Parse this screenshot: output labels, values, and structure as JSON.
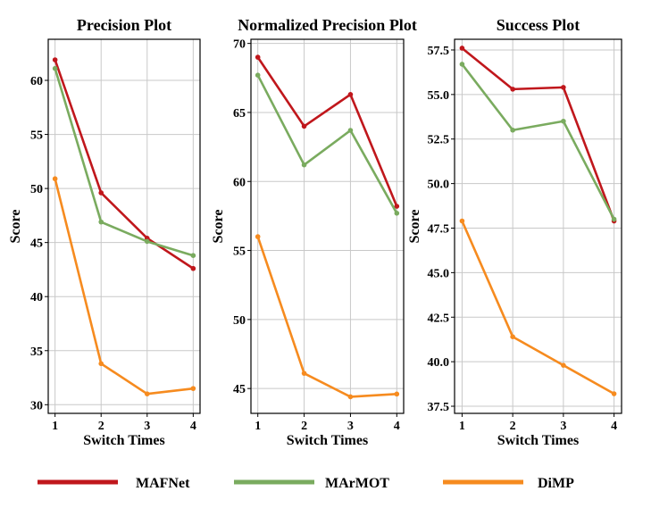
{
  "chart_data": [
    {
      "type": "line",
      "title": "Precision Plot",
      "xlabel": "Switch Times",
      "ylabel": "Score",
      "x": [
        1,
        2,
        3,
        4
      ],
      "xticks": [
        "1",
        "2",
        "3",
        "4"
      ],
      "ylim": [
        29.2,
        63.8
      ],
      "yticks": [
        "30",
        "35",
        "40",
        "45",
        "50",
        "55",
        "60"
      ],
      "grid": true,
      "series": [
        {
          "name": "MAFNet",
          "color": "#c0171c",
          "values": [
            61.9,
            49.6,
            45.4,
            42.6
          ]
        },
        {
          "name": "MArMOT",
          "color": "#7aab5f",
          "values": [
            61.1,
            46.9,
            45.1,
            43.8
          ]
        },
        {
          "name": "DiMP",
          "color": "#f68b1f",
          "values": [
            50.9,
            33.8,
            31.0,
            31.5
          ]
        }
      ]
    },
    {
      "type": "line",
      "title": "Normalized Precision Plot",
      "xlabel": "Switch Times",
      "ylabel": "Score",
      "x": [
        1,
        2,
        3,
        4
      ],
      "xticks": [
        "1",
        "2",
        "3",
        "4"
      ],
      "ylim": [
        43.2,
        70.3
      ],
      "yticks": [
        "45",
        "50",
        "55",
        "60",
        "65",
        "70"
      ],
      "grid": true,
      "series": [
        {
          "name": "MAFNet",
          "color": "#c0171c",
          "values": [
            69.0,
            64.0,
            66.3,
            58.2
          ]
        },
        {
          "name": "MArMOT",
          "color": "#7aab5f",
          "values": [
            67.7,
            61.2,
            63.7,
            57.7
          ]
        },
        {
          "name": "DiMP",
          "color": "#f68b1f",
          "values": [
            56.0,
            46.1,
            44.4,
            44.6
          ]
        }
      ]
    },
    {
      "type": "line",
      "title": "Success Plot",
      "xlabel": "Switch Times",
      "ylabel": "Score",
      "x": [
        1,
        2,
        3,
        4
      ],
      "xticks": [
        "1",
        "2",
        "3",
        "4"
      ],
      "ylim": [
        37.1,
        58.1
      ],
      "yticks": [
        "37.5",
        "40.0",
        "42.5",
        "45.0",
        "47.5",
        "50.0",
        "52.5",
        "55.0",
        "57.5"
      ],
      "grid": true,
      "series": [
        {
          "name": "MAFNet",
          "color": "#c0171c",
          "values": [
            57.6,
            55.3,
            55.4,
            47.9
          ]
        },
        {
          "name": "MArMOT",
          "color": "#7aab5f",
          "values": [
            56.7,
            53.0,
            53.5,
            48.0
          ]
        },
        {
          "name": "DiMP",
          "color": "#f68b1f",
          "values": [
            47.9,
            41.4,
            39.8,
            38.2
          ]
        }
      ]
    }
  ],
  "legend": {
    "placement": "bottom",
    "items": [
      {
        "label": "MAFNet",
        "color": "#c0171c"
      },
      {
        "label": "MArMOT",
        "color": "#7aab5f"
      },
      {
        "label": "DiMP",
        "color": "#f68b1f"
      }
    ]
  }
}
